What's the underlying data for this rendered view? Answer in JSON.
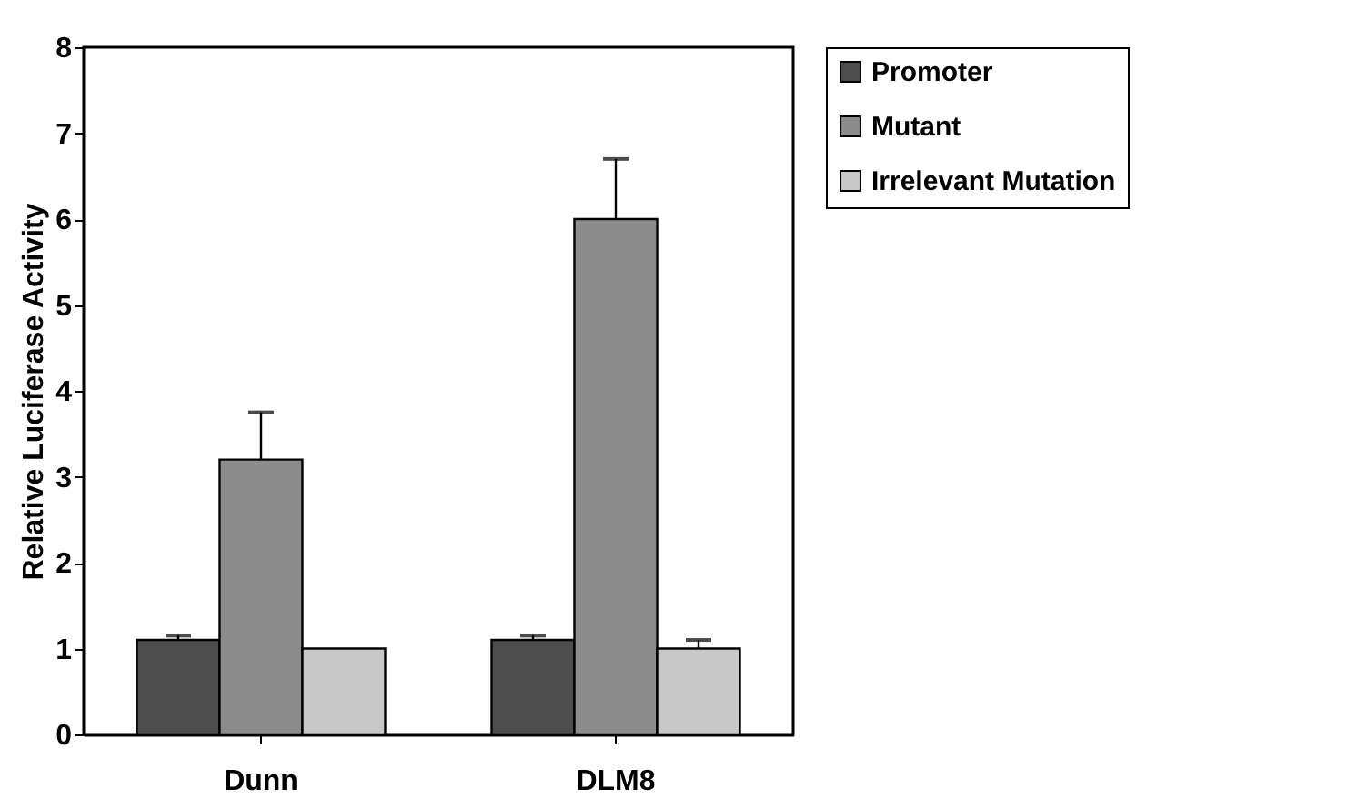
{
  "chart_data": {
    "type": "bar",
    "ylabel": "Relative Luciferase Activity",
    "categories": [
      "Dunn",
      "DLM8"
    ],
    "series": [
      {
        "name": "Promoter",
        "color": "#4d4d4d",
        "values": [
          1.1,
          1.1
        ],
        "errors": [
          0.05,
          0.05
        ]
      },
      {
        "name": "Mutant",
        "color": "#8c8c8c",
        "values": [
          3.2,
          6.0
        ],
        "errors": [
          0.55,
          0.7
        ]
      },
      {
        "name": "Irrelevant Mutation",
        "color": "#c8c8c8",
        "values": [
          1.0,
          1.0
        ],
        "errors": [
          null,
          0.1
        ]
      }
    ],
    "ylim": [
      0,
      8
    ],
    "yticks": [
      0,
      1,
      2,
      3,
      4,
      5,
      6,
      7,
      8
    ],
    "legend": "right",
    "grid": false
  }
}
